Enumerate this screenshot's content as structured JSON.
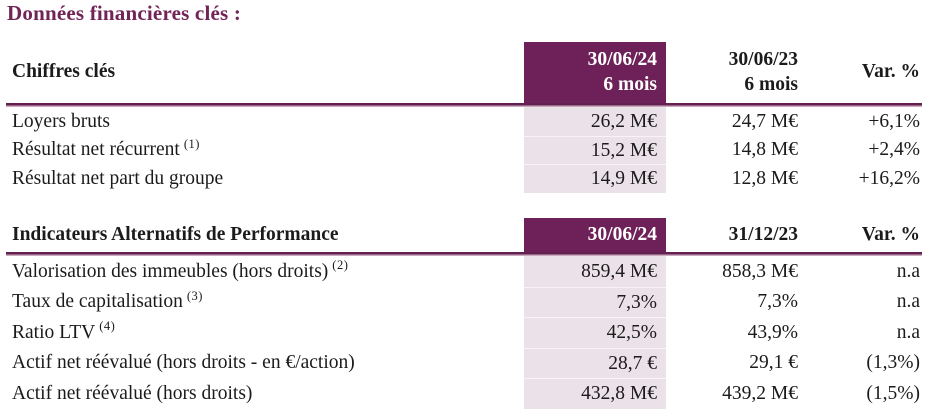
{
  "page_title": "Données financières clés :",
  "colors": {
    "accent_plum": "#6E2158",
    "title_plum": "#722457",
    "highlight_column_pink": "#EBE1E8",
    "rule_dark": "#632050",
    "rule_light": "#CBAABE"
  },
  "tables": [
    {
      "header": {
        "label": "Chiffres clés",
        "current_line1": "30/06/24",
        "current_line2": "6 mois",
        "previous_line1": "30/06/23",
        "previous_line2": "6 mois",
        "variation": "Var. %"
      },
      "rows": [
        {
          "label": "Loyers bruts",
          "sup": "",
          "current": "26,2 M€",
          "previous": "24,7 M€",
          "variation": "+6,1%"
        },
        {
          "label": "Résultat net récurrent",
          "sup": "(1)",
          "current": "15,2 M€",
          "previous": "14,8 M€",
          "variation": "+2,4%"
        },
        {
          "label": "Résultat net part du groupe",
          "sup": "",
          "current": "14,9 M€",
          "previous": "12,8 M€",
          "variation": "+16,2%"
        }
      ]
    },
    {
      "header": {
        "label": "Indicateurs Alternatifs de Performance",
        "current_line1": "30/06/24",
        "previous_line1": "31/12/23",
        "variation": "Var. %"
      },
      "rows": [
        {
          "label": "Valorisation des immeubles (hors droits)",
          "sup": "(2)",
          "current": "859,4 M€",
          "previous": "858,3 M€",
          "variation": "n.a"
        },
        {
          "label": "Taux de capitalisation",
          "sup": "(3)",
          "current": "7,3%",
          "previous": "7,3%",
          "variation": "n.a"
        },
        {
          "label": "Ratio LTV",
          "sup": "(4)",
          "current": "42,5%",
          "previous": "43,9%",
          "variation": "n.a"
        },
        {
          "label": "Actif net réévalué (hors droits - en €/action)",
          "sup": "",
          "current": "28,7 €",
          "previous": "29,1 €",
          "variation": "(1,3%)"
        },
        {
          "label": "Actif net réévalué (hors droits)",
          "sup": "",
          "current": "432,8 M€",
          "previous": "439,2 M€",
          "variation": "(1,5%)"
        }
      ]
    }
  ]
}
